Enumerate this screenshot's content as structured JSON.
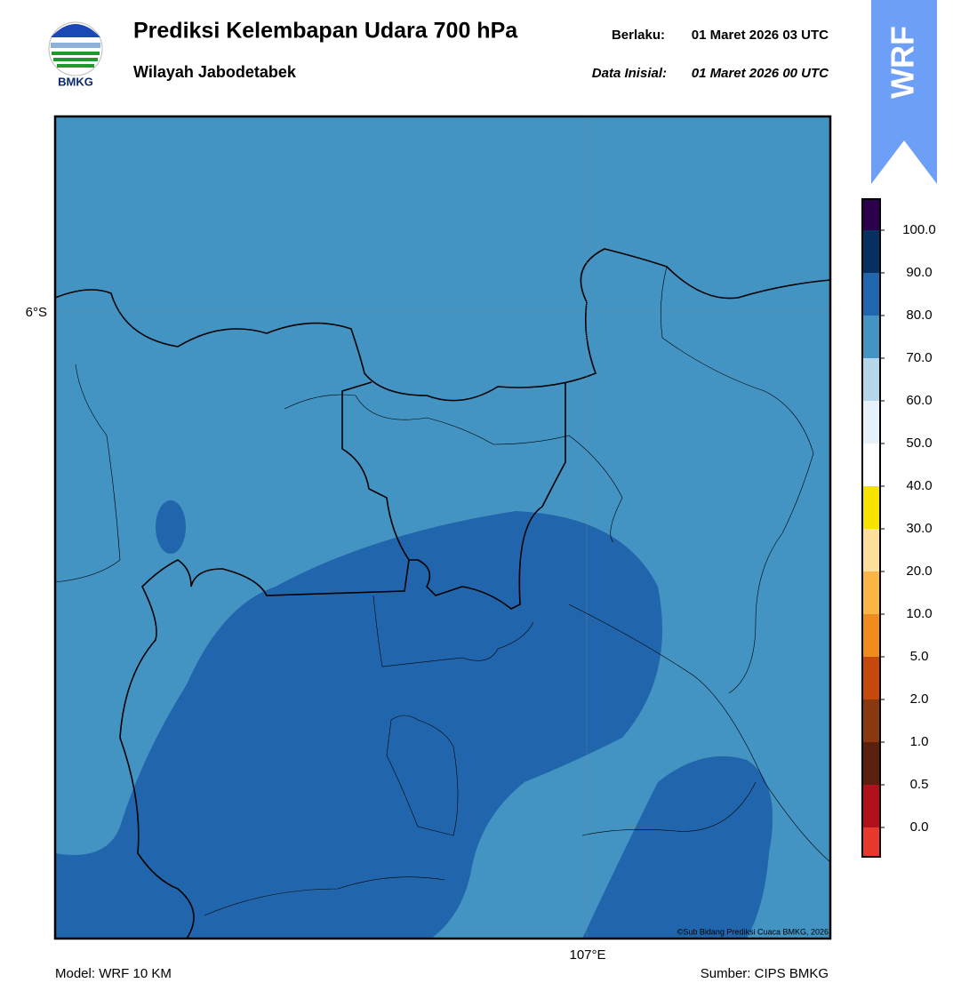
{
  "logo": {
    "label": "BMKG"
  },
  "header": {
    "title": "Prediksi Kelembapan Udara 700 hPa",
    "subtitle": "Wilayah Jabodetabek",
    "valid_label": "Berlaku:",
    "valid_time": "01 Maret 2026 03 UTC",
    "init_label": "Data Inisial:",
    "init_time": "01 Maret 2026 00 UTC"
  },
  "badge": "WRF",
  "map": {
    "lat_label": "6°S",
    "lon_label": "107°E",
    "credit": "©Sub Bidang Prediksi Cuaca BMKG, 2026"
  },
  "colorbar": {
    "labels": [
      "0.0",
      "0.5",
      "1.0",
      "2.0",
      "5.0",
      "10.0",
      "20.0",
      "30.0",
      "40.0",
      "50.0",
      "60.0",
      "70.0",
      "80.0",
      "90.0",
      "100.0"
    ],
    "colors": [
      "#e8392e",
      "#b0111b",
      "#5c210e",
      "#8a3810",
      "#c6480c",
      "#f08c1d",
      "#fbb446",
      "#fde09c",
      "#f7e300",
      "#ffffff",
      "#e6f1f9",
      "#b5d7e9",
      "#4393c3",
      "#2166ac",
      "#053061",
      "#2d004b"
    ]
  },
  "footer": {
    "model": "Model: WRF 10 KM",
    "source": "Sumber: CIPS BMKG"
  }
}
